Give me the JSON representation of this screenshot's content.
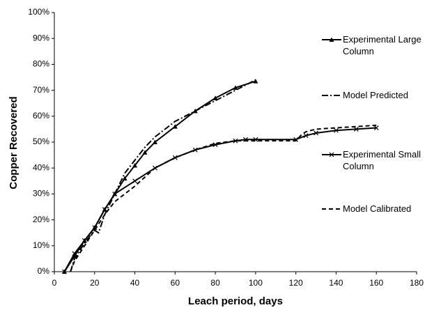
{
  "chart_data": {
    "type": "line",
    "x_label": "Leach period, days",
    "y_label": "Copper Recovered",
    "xlim": [
      0,
      180
    ],
    "xticks": [
      0,
      20,
      40,
      60,
      80,
      100,
      120,
      140,
      160,
      180
    ],
    "ylim": [
      0,
      100
    ],
    "yticks": [
      {
        "value": 0,
        "label": "0%"
      },
      {
        "value": 10,
        "label": "10%"
      },
      {
        "value": 20,
        "label": "20%"
      },
      {
        "value": 30,
        "label": "30%"
      },
      {
        "value": 40,
        "label": "40%"
      },
      {
        "value": 50,
        "label": "50%"
      },
      {
        "value": 60,
        "label": "60%"
      },
      {
        "value": 70,
        "label": "70%"
      },
      {
        "value": 80,
        "label": "80%"
      },
      {
        "value": 90,
        "label": "90%"
      },
      {
        "value": 100,
        "label": "100%"
      }
    ],
    "grid": false,
    "legend": "right",
    "series": [
      {
        "name": "Experimental Large Column",
        "color": "#000000",
        "dash": "solid",
        "marker": "triangle",
        "x": [
          5,
          10,
          15,
          20,
          25,
          30,
          35,
          40,
          45,
          50,
          60,
          70,
          80,
          90,
          100
        ],
        "values": [
          0,
          6,
          12,
          17,
          24,
          30,
          36,
          41,
          46,
          50,
          56,
          62,
          67,
          71,
          73.5
        ]
      },
      {
        "name": "Model Predicted",
        "color": "#000000",
        "dash": "dashdot",
        "marker": "none",
        "x": [
          8,
          10,
          15,
          20,
          22,
          25,
          30,
          35,
          40,
          45,
          50,
          60,
          70,
          80,
          90,
          100
        ],
        "values": [
          0,
          5,
          11,
          16,
          15,
          22,
          30,
          38,
          43,
          48,
          52,
          58,
          62,
          66,
          70,
          74
        ]
      },
      {
        "name": "Experimental Small Column",
        "color": "#000000",
        "dash": "solid",
        "marker": "cross",
        "x": [
          5,
          10,
          15,
          20,
          25,
          30,
          40,
          50,
          60,
          70,
          80,
          90,
          95,
          100,
          120,
          125,
          130,
          140,
          150,
          160
        ],
        "values": [
          0,
          7,
          12,
          17,
          24,
          30,
          35,
          40,
          44,
          47,
          49,
          50.5,
          51,
          51,
          51,
          52.5,
          53.5,
          54.5,
          55,
          55.5
        ]
      },
      {
        "name": "Model Calibrated",
        "color": "#000000",
        "dash": "dashed",
        "marker": "none",
        "x": [
          8,
          10,
          15,
          20,
          25,
          30,
          40,
          50,
          60,
          70,
          80,
          90,
          100,
          120,
          123,
          125,
          130,
          140,
          150,
          160
        ],
        "values": [
          0,
          4,
          10,
          16,
          22,
          27,
          33,
          40,
          44,
          47,
          49.5,
          50.5,
          50.5,
          50.5,
          53,
          54,
          55,
          55.5,
          56,
          56.5
        ]
      }
    ]
  }
}
